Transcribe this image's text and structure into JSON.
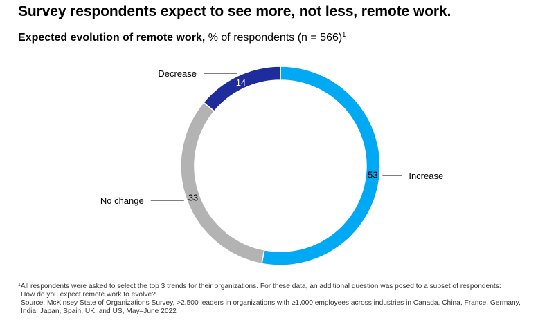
{
  "title": "Survey respondents expect to see more, not less, remote work.",
  "subtitle": {
    "bold": "Expected evolution of remote work,",
    "rest": "% of respondents (n = 566)",
    "footnote_mark": "1"
  },
  "chart_data": {
    "type": "pie",
    "donut": true,
    "categories": [
      "Increase",
      "No change",
      "Decrease"
    ],
    "values": [
      53,
      33,
      14
    ],
    "value_labels": [
      "53",
      "33",
      "14"
    ],
    "colors": [
      "#00A9F4",
      "#B3B3B3",
      "#1F2D9C"
    ],
    "value_label_colors": [
      "#000000",
      "#000000",
      "#FFFFFF"
    ],
    "label_sides": [
      "right",
      "left",
      "left"
    ]
  },
  "footnotes": {
    "mark": "1",
    "note_line1": "All respondents were asked to select the top 3 trends for their organizations. For these data, an additional question was posed to a subset of respondents:",
    "note_line2": "How do you expect remote work to evolve?",
    "source_line1": "Source: McKinsey State of Organizations Survey, >2,500 leaders in organizations with ≥1,000 employees across industries in Canada, China, France, Germany,",
    "source_line2": "India, Japan, Spain, UK, and US, May–June 2022"
  }
}
